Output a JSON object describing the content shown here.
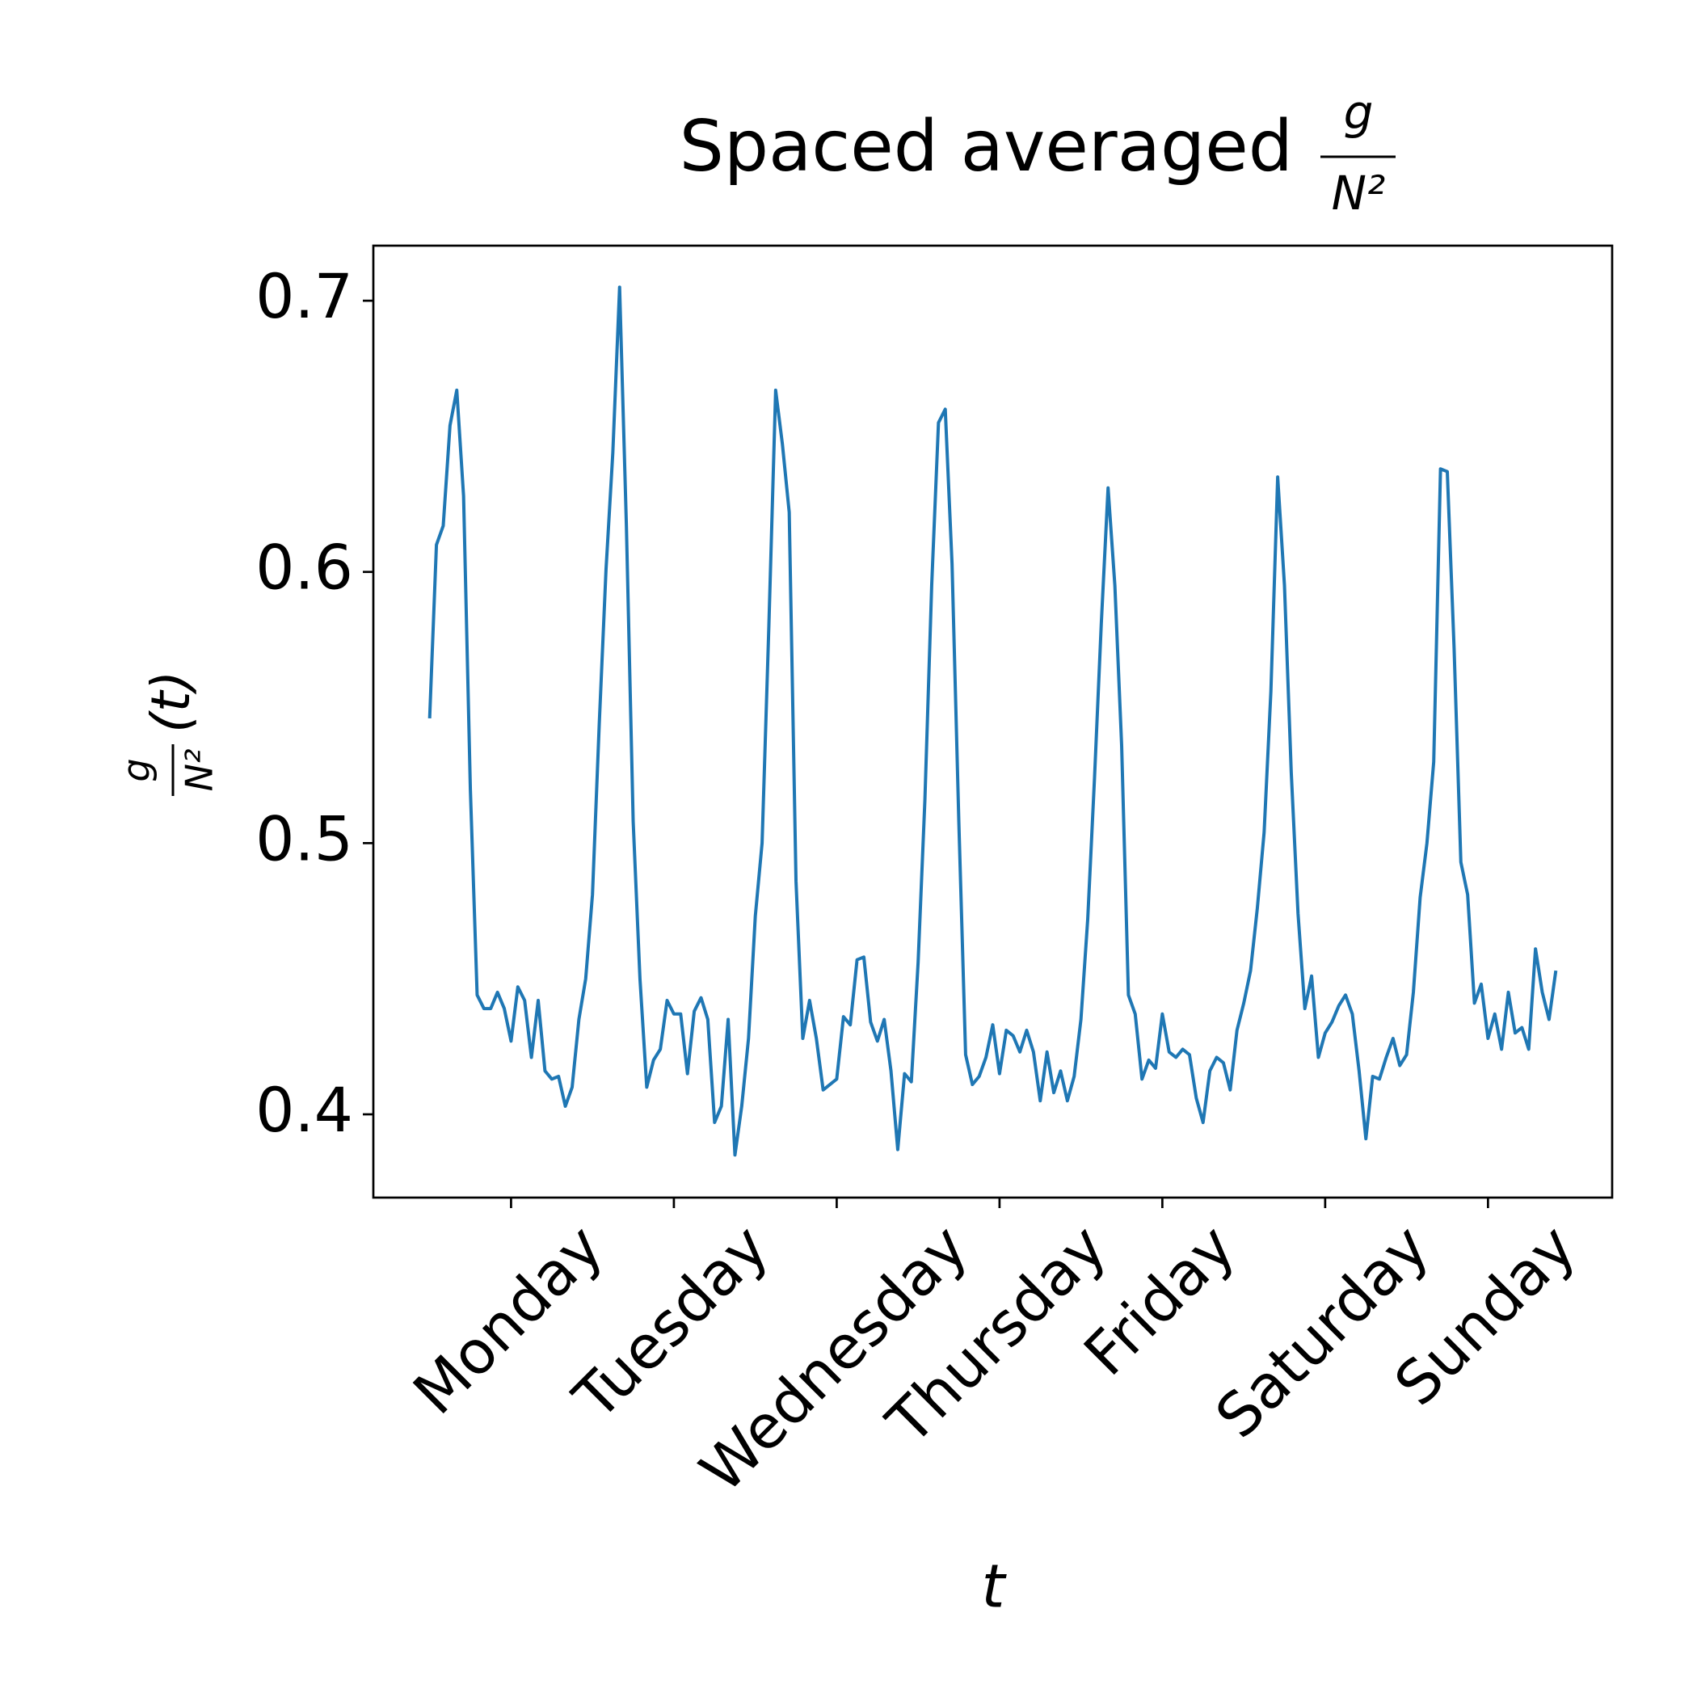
{
  "chart_data": {
    "type": "line",
    "title": "Spaced averaged",
    "title_fraction": {
      "numerator": "g",
      "denominator": "N²"
    },
    "ylabel": {
      "numerator": "g",
      "denominator": "N²",
      "suffix": "(t)"
    },
    "xlabel": "t",
    "x": [
      0,
      1,
      2,
      3,
      4,
      5,
      6,
      7,
      8,
      9,
      10,
      11,
      12,
      13,
      14,
      15,
      16,
      17,
      18,
      19,
      20,
      21,
      22,
      23,
      24,
      25,
      26,
      27,
      28,
      29,
      30,
      31,
      32,
      33,
      34,
      35,
      36,
      37,
      38,
      39,
      40,
      41,
      42,
      43,
      44,
      45,
      46,
      47,
      48,
      49,
      50,
      51,
      52,
      53,
      54,
      55,
      56,
      57,
      58,
      59,
      60,
      61,
      62,
      63,
      64,
      65,
      66,
      67,
      68,
      69,
      70,
      71,
      72,
      73,
      74,
      75,
      76,
      77,
      78,
      79,
      80,
      81,
      82,
      83,
      84,
      85,
      86,
      87,
      88,
      89,
      90,
      91,
      92,
      93,
      94,
      95,
      96,
      97,
      98,
      99,
      100,
      101,
      102,
      103,
      104,
      105,
      106,
      107,
      108,
      109,
      110,
      111,
      112,
      113,
      114,
      115,
      116,
      117,
      118,
      119,
      120,
      121,
      122,
      123,
      124,
      125,
      126,
      127,
      128,
      129,
      130,
      131,
      132,
      133,
      134,
      135,
      136,
      137,
      138,
      139,
      140,
      141,
      142,
      143,
      144,
      145,
      146,
      147,
      148,
      149,
      150,
      151,
      152,
      153,
      154,
      155,
      156,
      157,
      158,
      159,
      160,
      161,
      162,
      163,
      164,
      165,
      166
    ],
    "series": [
      {
        "color": "#1f77b4",
        "values": [
          0.546,
          0.61,
          0.617,
          0.654,
          0.667,
          0.628,
          0.52,
          0.444,
          0.439,
          0.439,
          0.445,
          0.439,
          0.427,
          0.447,
          0.442,
          0.421,
          0.442,
          0.416,
          0.413,
          0.414,
          0.403,
          0.41,
          0.435,
          0.45,
          0.481,
          0.544,
          0.601,
          0.644,
          0.705,
          0.617,
          0.508,
          0.45,
          0.41,
          0.42,
          0.424,
          0.442,
          0.437,
          0.437,
          0.415,
          0.438,
          0.443,
          0.435,
          0.397,
          0.403,
          0.435,
          0.385,
          0.403,
          0.428,
          0.473,
          0.5,
          0.58,
          0.667,
          0.647,
          0.622,
          0.486,
          0.428,
          0.442,
          0.428,
          0.409,
          0.411,
          0.413,
          0.436,
          0.433,
          0.457,
          0.458,
          0.434,
          0.427,
          0.435,
          0.416,
          0.387,
          0.415,
          0.412,
          0.456,
          0.516,
          0.595,
          0.655,
          0.66,
          0.603,
          0.508,
          0.422,
          0.411,
          0.414,
          0.421,
          0.433,
          0.415,
          0.431,
          0.429,
          0.423,
          0.431,
          0.423,
          0.405,
          0.423,
          0.408,
          0.416,
          0.405,
          0.414,
          0.435,
          0.472,
          0.524,
          0.581,
          0.631,
          0.595,
          0.536,
          0.444,
          0.437,
          0.413,
          0.42,
          0.417,
          0.437,
          0.423,
          0.421,
          0.424,
          0.422,
          0.406,
          0.397,
          0.416,
          0.421,
          0.419,
          0.409,
          0.431,
          0.441,
          0.453,
          0.476,
          0.504,
          0.556,
          0.635,
          0.595,
          0.526,
          0.474,
          0.439,
          0.451,
          0.421,
          0.43,
          0.434,
          0.44,
          0.444,
          0.437,
          0.416,
          0.391,
          0.414,
          0.413,
          0.421,
          0.428,
          0.418,
          0.422,
          0.445,
          0.48,
          0.5,
          0.53,
          0.638,
          0.637,
          0.572,
          0.493,
          0.481,
          0.441,
          0.448,
          0.428,
          0.437,
          0.424,
          0.445,
          0.43,
          0.432,
          0.424,
          0.461,
          0.445,
          0.435,
          0.453
        ]
      }
    ],
    "xlim": [
      -8.3,
      174.3
    ],
    "xticks": [
      {
        "value": 12,
        "label": "Monday"
      },
      {
        "value": 36,
        "label": "Tuesday"
      },
      {
        "value": 60,
        "label": "Wednesday"
      },
      {
        "value": 84,
        "label": "Thursday"
      },
      {
        "value": 108,
        "label": "Friday"
      },
      {
        "value": 132,
        "label": "Saturday"
      },
      {
        "value": 156,
        "label": "Sunday"
      }
    ],
    "ylim": [
      0.3693,
      0.7203
    ],
    "yticks": [
      0.4,
      0.5,
      0.6,
      0.7
    ],
    "grid": false
  }
}
